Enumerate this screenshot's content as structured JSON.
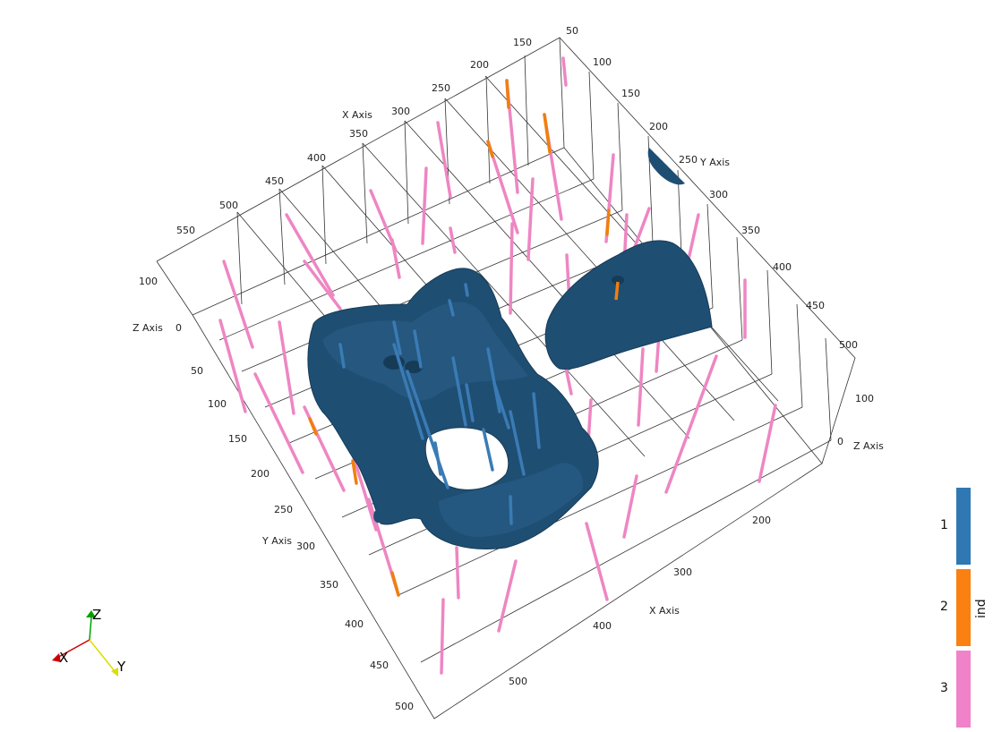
{
  "scene": {
    "axis_titles": {
      "x_top": "X Axis",
      "y_right": "Y Axis",
      "z_left": "Z Axis",
      "z_right": "Z Axis",
      "y_left": "Y Axis",
      "x_bottom": "X Axis"
    },
    "x_top_ticks": [
      "150",
      "200",
      "250",
      "300",
      "350",
      "400",
      "450",
      "500",
      "550"
    ],
    "y_right_ticks": [
      "50",
      "100",
      "150",
      "200",
      "250",
      "300",
      "350",
      "400",
      "450",
      "500"
    ],
    "z_left_ticks": [
      "100",
      "0"
    ],
    "z_right_ticks": [
      "100",
      "0"
    ],
    "y_left_ticks": [
      "50",
      "100",
      "150",
      "200",
      "250",
      "300",
      "350",
      "400",
      "450",
      "500"
    ],
    "x_bottom_ticks": [
      "200",
      "300",
      "400",
      "500"
    ],
    "colors": {
      "surface": "#1f4e73",
      "ind1": "#3a7bb5",
      "ind2": "#f07f0e",
      "ind3": "#ee86c3",
      "grid": "#333333"
    }
  },
  "legend": {
    "title": "ind",
    "items": [
      {
        "label": "1",
        "color": "#2f78b4"
      },
      {
        "label": "2",
        "color": "#f98011"
      },
      {
        "label": "3",
        "color": "#f082c9"
      }
    ]
  },
  "orientation": {
    "x": "X",
    "y": "Y",
    "z": "Z"
  }
}
